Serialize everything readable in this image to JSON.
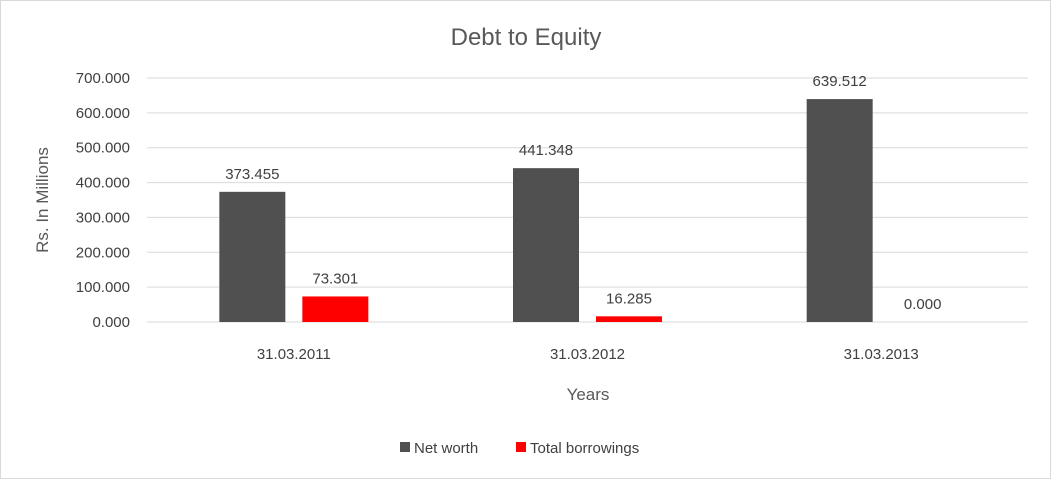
{
  "chart_data": {
    "type": "bar",
    "title": "Debt to Equity",
    "xlabel": "Years",
    "ylabel": "Rs. In Millions",
    "categories": [
      "31.03.2011",
      "31.03.2012",
      "31.03.2013"
    ],
    "series": [
      {
        "name": "Net worth",
        "values": [
          373.455,
          441.348,
          639.512
        ],
        "labels": [
          "373.455",
          "441.348",
          "639.512"
        ],
        "color": "#505050"
      },
      {
        "name": "Total borrowings",
        "values": [
          73.301,
          16.285,
          0.0
        ],
        "labels": [
          "73.301",
          "16.285",
          "0.000"
        ],
        "color": "#ff0000"
      }
    ],
    "ylim": [
      0,
      700
    ],
    "yticks": [
      "0.000",
      "100.000",
      "200.000",
      "300.000",
      "400.000",
      "500.000",
      "600.000",
      "700.000"
    ],
    "grid": true,
    "legend_position": "bottom"
  }
}
